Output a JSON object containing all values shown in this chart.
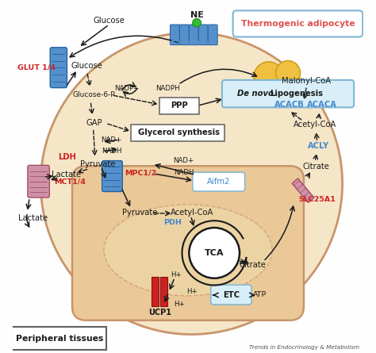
{
  "bg_color": "#FEFEFE",
  "cell_color": "#F5E6C8",
  "cell_border_color": "#C8956A",
  "mito_color": "#EAC898",
  "mito_border_color": "#C8956A",
  "title_text": "Thermogenic adipocyte",
  "title_color": "#E05050",
  "title_border": "#7EB7D4",
  "footer_text": "Trends in Endocrinology & Metabolism",
  "peripheral_text": "Peripheral tissues",
  "ppp_text": "PPP",
  "glycerol_text": "Glycerol synthesis",
  "tca_text": "TCA",
  "etc_text": "ETC",
  "pdh_text": "PDH",
  "aifm2_text": "Aifm2",
  "ne_text": "NE",
  "glut14": "GLUT 1/4",
  "glucose_top": "Glucose",
  "glucose": "Glucose",
  "glucose6p": "Glucose-6-P",
  "nadp": "NADP+",
  "nadph": "NADPH",
  "gap": "GAP",
  "nad_plus1": "NAD+",
  "nadh1": "NADH",
  "nad_plus2": "NAD+",
  "nadh2": "NADH",
  "pyruvate1": "Pyruvate",
  "pyruvate2": "Pyruvate",
  "ldh": "LDH",
  "mpc12": "MPC1/2",
  "lactate1": "Lactate",
  "lactate2": "Lactate",
  "mct14": "MCT1/4",
  "acetylcoa_mito": "Acetyl-CoA",
  "acetylcoa_cyto": "Acetyl-CoA",
  "citrate_mito": "Citrate",
  "citrate_cyto": "Citrate",
  "acly": "ACLY",
  "acaca": "ACACA",
  "acacb": "ACACB",
  "malonylcoa": "Malonyl-CoA",
  "slc25a1": "SLC25A1",
  "ucp1_text": "UCP1",
  "hplus1": "H+",
  "hplus2": "H+",
  "hplus3": "H+",
  "atp": "ATP",
  "red_color": "#CC2222",
  "blue_color": "#4488CC",
  "dark_color": "#1a1a1a",
  "box_blue": "#7EB7D4",
  "box_fill": "#FFFFFF"
}
